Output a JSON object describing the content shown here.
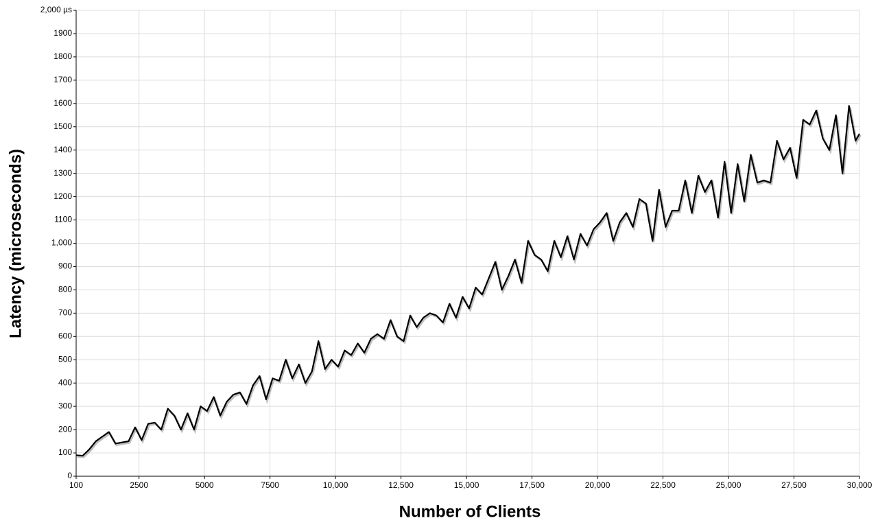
{
  "chart_data": {
    "type": "line",
    "xlabel": "Number of Clients",
    "ylabel": "Latency (microseconds)",
    "x": [
      100,
      350,
      600,
      850,
      1100,
      1350,
      1600,
      1850,
      2100,
      2350,
      2600,
      2850,
      3100,
      3350,
      3600,
      3850,
      4100,
      4350,
      4600,
      4850,
      5100,
      5350,
      5600,
      5850,
      6100,
      6350,
      6600,
      6850,
      7100,
      7350,
      7600,
      7850,
      8100,
      8350,
      8600,
      8850,
      9100,
      9350,
      9600,
      9850,
      10100,
      10350,
      10600,
      10850,
      11100,
      11350,
      11600,
      11850,
      12100,
      12350,
      12600,
      12850,
      13100,
      13350,
      13600,
      13850,
      14100,
      14350,
      14600,
      14850,
      15100,
      15350,
      15600,
      15850,
      16100,
      16350,
      16600,
      16850,
      17100,
      17350,
      17600,
      17850,
      18100,
      18350,
      18600,
      18850,
      19100,
      19350,
      19600,
      19850,
      20100,
      20350,
      20600,
      20850,
      21100,
      21350,
      21600,
      21850,
      22100,
      22350,
      22600,
      22850,
      23100,
      23350,
      23600,
      23850,
      24100,
      24350,
      24600,
      24850,
      25100,
      25350,
      25600,
      25850,
      26100,
      26350,
      26600,
      26850,
      27100,
      27350,
      27600,
      27850,
      28100,
      28350,
      28600,
      28850,
      29100,
      29350,
      29600,
      29850,
      30000
    ],
    "series": [
      {
        "name": "Latency",
        "color": "#000000",
        "values": [
          90,
          88,
          115,
          150,
          170,
          190,
          140,
          145,
          150,
          210,
          155,
          225,
          230,
          200,
          290,
          260,
          200,
          270,
          200,
          300,
          280,
          340,
          260,
          320,
          350,
          360,
          310,
          390,
          430,
          330,
          420,
          410,
          500,
          420,
          480,
          400,
          450,
          580,
          460,
          500,
          470,
          540,
          520,
          570,
          530,
          590,
          610,
          590,
          670,
          600,
          580,
          690,
          640,
          680,
          700,
          690,
          660,
          740,
          680,
          770,
          720,
          810,
          780,
          850,
          920,
          800,
          860,
          930,
          830,
          1010,
          950,
          930,
          880,
          1010,
          940,
          1030,
          930,
          1040,
          990,
          1060,
          1090,
          1130,
          1010,
          1090,
          1130,
          1070,
          1190,
          1170,
          1010,
          1230,
          1070,
          1140,
          1140,
          1270,
          1130,
          1290,
          1220,
          1270,
          1110,
          1350,
          1130,
          1340,
          1180,
          1380,
          1260,
          1270,
          1260,
          1440,
          1360,
          1410,
          1280,
          1530,
          1510,
          1570,
          1450,
          1400,
          1550,
          1300,
          1590,
          1440,
          1470
        ]
      }
    ],
    "xlim": [
      100,
      30000
    ],
    "xticks": [
      100,
      2500,
      5000,
      7500,
      {
        "value": 10000,
        "label": "10,000"
      },
      {
        "value": 12500,
        "label": "12,500"
      },
      {
        "value": 15000,
        "label": "15,000"
      },
      {
        "value": 17500,
        "label": "17,500"
      },
      {
        "value": 20000,
        "label": "20,000"
      },
      {
        "value": 22500,
        "label": "22,500"
      },
      {
        "value": 25000,
        "label": "25,000"
      },
      {
        "value": 27500,
        "label": "27,500"
      },
      {
        "value": 30000,
        "label": "30,000"
      }
    ],
    "ylim": [
      0,
      2000
    ],
    "yticks": [
      0,
      100,
      200,
      300,
      400,
      500,
      600,
      700,
      800,
      900,
      {
        "value": 1000,
        "label": "1,000"
      },
      1100,
      1200,
      1300,
      1400,
      1500,
      1600,
      1700,
      1800,
      1900,
      {
        "value": 2000,
        "label": "2,000 µs"
      }
    ],
    "grid": true
  }
}
